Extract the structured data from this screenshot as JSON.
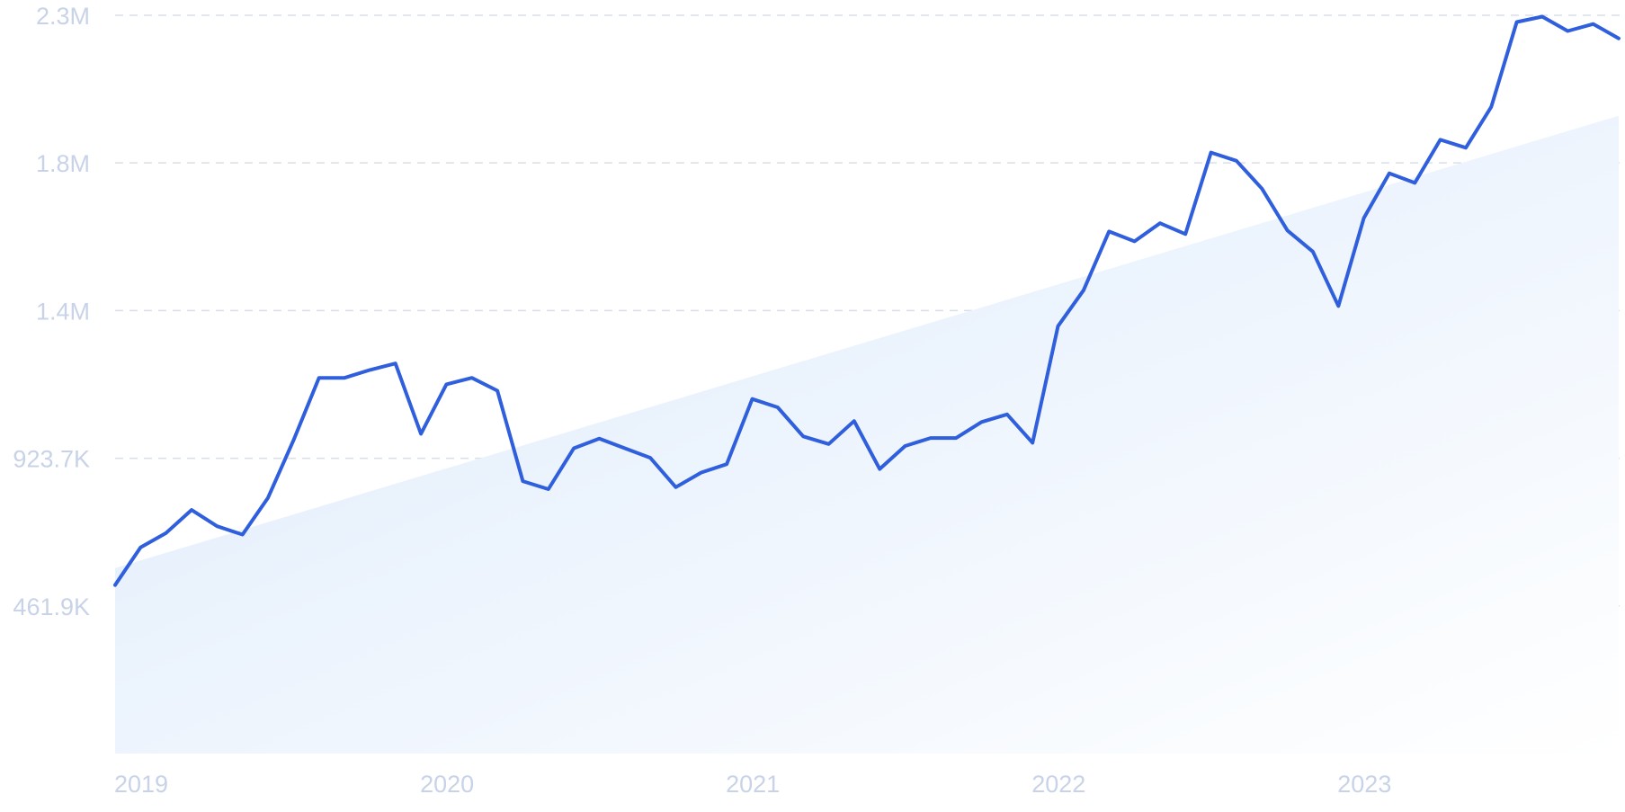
{
  "chart_data": {
    "type": "line",
    "title": "",
    "xlabel": "",
    "ylabel": "",
    "grid": true,
    "legend": "none",
    "x_ticks": [
      "2019",
      "2020",
      "2021",
      "2022",
      "2023"
    ],
    "y_ticks": [
      {
        "label": "461.9K",
        "value": 461900
      },
      {
        "label": "923.7K",
        "value": 923700
      },
      {
        "label": "1.4M",
        "value": 1385600
      },
      {
        "label": "1.8M",
        "value": 1847400
      },
      {
        "label": "2.3M",
        "value": 2309200
      }
    ],
    "ylim": [
      0,
      2309200
    ],
    "xlim": [
      "2019-01",
      "2023-12"
    ],
    "colors": {
      "line": "#2f5fdc",
      "tick_text": "#c8d3e8",
      "fill_start": "#dceafb",
      "fill_end": "#ffffff"
    },
    "trend": {
      "start": {
        "x": "2019-01",
        "y": 580000
      },
      "end": {
        "x": "2023-12",
        "y": 1995000
      }
    },
    "series": [
      {
        "x": [
          "2019-01",
          "2019-02",
          "2019-03",
          "2019-04",
          "2019-05",
          "2019-06",
          "2019-07",
          "2019-08",
          "2019-09",
          "2019-10",
          "2019-11",
          "2019-12",
          "2020-01",
          "2020-02",
          "2020-03",
          "2020-04",
          "2020-05",
          "2020-06",
          "2020-07",
          "2020-08",
          "2020-09",
          "2020-10",
          "2020-11",
          "2020-12",
          "2021-01",
          "2021-02",
          "2021-03",
          "2021-04",
          "2021-05",
          "2021-06",
          "2021-07",
          "2021-08",
          "2021-09",
          "2021-10",
          "2021-11",
          "2021-12",
          "2022-01",
          "2022-02",
          "2022-03",
          "2022-04",
          "2022-05",
          "2022-06",
          "2022-07",
          "2022-08",
          "2022-09",
          "2022-10",
          "2022-11",
          "2022-12",
          "2023-01",
          "2023-02",
          "2023-03",
          "2023-04",
          "2023-05",
          "2023-06",
          "2023-07",
          "2023-08",
          "2023-09",
          "2023-10",
          "2023-11",
          "2023-12"
        ],
        "values": [
          527000,
          645000,
          690000,
          762000,
          711000,
          685000,
          800000,
          980000,
          1175000,
          1175000,
          1200000,
          1220000,
          1000000,
          1155000,
          1175000,
          1135000,
          852000,
          827000,
          955000,
          985000,
          955000,
          925000,
          833000,
          879000,
          905000,
          1109000,
          1083000,
          992000,
          968000,
          1040000,
          890000,
          962000,
          987000,
          987000,
          1037000,
          1061000,
          972000,
          1337000,
          1449000,
          1633000,
          1602000,
          1659000,
          1625000,
          1880000,
          1854000,
          1767000,
          1636000,
          1570000,
          1400000,
          1675000,
          1815000,
          1785000,
          1920000,
          1895000,
          2023000,
          2288000,
          2305000,
          2260000,
          2282000,
          2237000
        ]
      }
    ]
  }
}
